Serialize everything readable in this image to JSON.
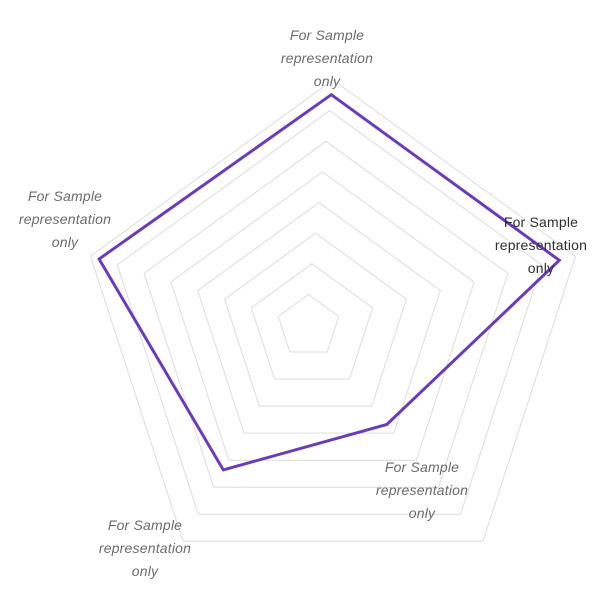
{
  "chart_data": {
    "type": "radar",
    "title": "",
    "axes": [
      "For Sample\nrepresentation\nonly",
      "For Sample\nrepresentation\nonly",
      "For Sample\nrepresentation\nonly",
      "For Sample\nrepresentation\nonly",
      "For Sample\nrepresentation\nonly"
    ],
    "series": [
      {
        "values": [
          9.4,
          9.4,
          4.6,
          6.7,
          9.6
        ]
      }
    ],
    "range": [
      0,
      10
    ],
    "rings": 8,
    "grid": true,
    "legend": "none",
    "line_color": "#6a3db8",
    "grid_color": "#dcdcdc"
  }
}
